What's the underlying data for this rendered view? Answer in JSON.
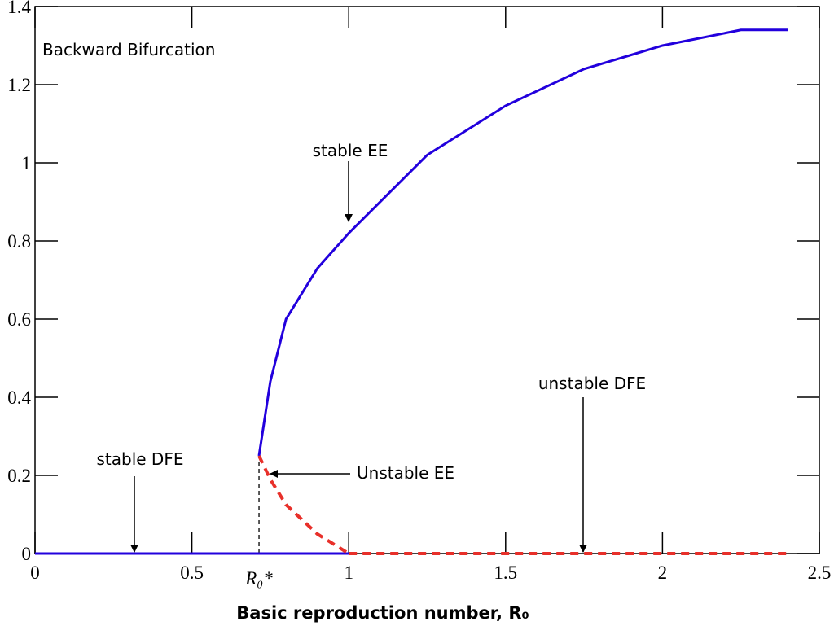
{
  "chart_data": {
    "type": "line",
    "annotation": "Backward Bifurcation",
    "xlabel": "Basic reproduction number, R₀",
    "xlim": [
      0,
      2.5
    ],
    "xticks": [
      0,
      0.5,
      {
        "value": 0.714,
        "label": "R₀*"
      },
      1,
      1.5,
      2,
      2.5
    ],
    "ylim": [
      0,
      1.4
    ],
    "yticks": [
      0,
      0.2,
      0.4,
      0.6,
      0.8,
      1,
      1.2,
      1.4
    ],
    "series": [
      {
        "name": "stable EE",
        "color": "#2200dd",
        "style": "solid",
        "x": [
          0.714,
          0.75,
          0.8,
          0.9,
          1,
          1.25,
          1.5,
          1.75,
          2,
          2.25,
          2.4
        ],
        "values": [
          0.25,
          0.44,
          0.6,
          0.73,
          0.82,
          1.02,
          1.146,
          1.24,
          1.3,
          1.34,
          1.34
        ]
      },
      {
        "name": "Unstable EE",
        "color": "#e8302a",
        "style": "dashed",
        "x": [
          0.714,
          0.75,
          0.8,
          0.9,
          1
        ],
        "values": [
          0.25,
          0.19,
          0.125,
          0.05,
          0
        ]
      },
      {
        "name": "stable DFE",
        "color": "#2200dd",
        "style": "solid",
        "x": [
          0,
          1
        ],
        "values": [
          0,
          0
        ]
      },
      {
        "name": "unstable DFE",
        "color": "#e8302a",
        "style": "dashed",
        "x": [
          1,
          2.4
        ],
        "values": [
          0,
          0
        ]
      }
    ]
  }
}
